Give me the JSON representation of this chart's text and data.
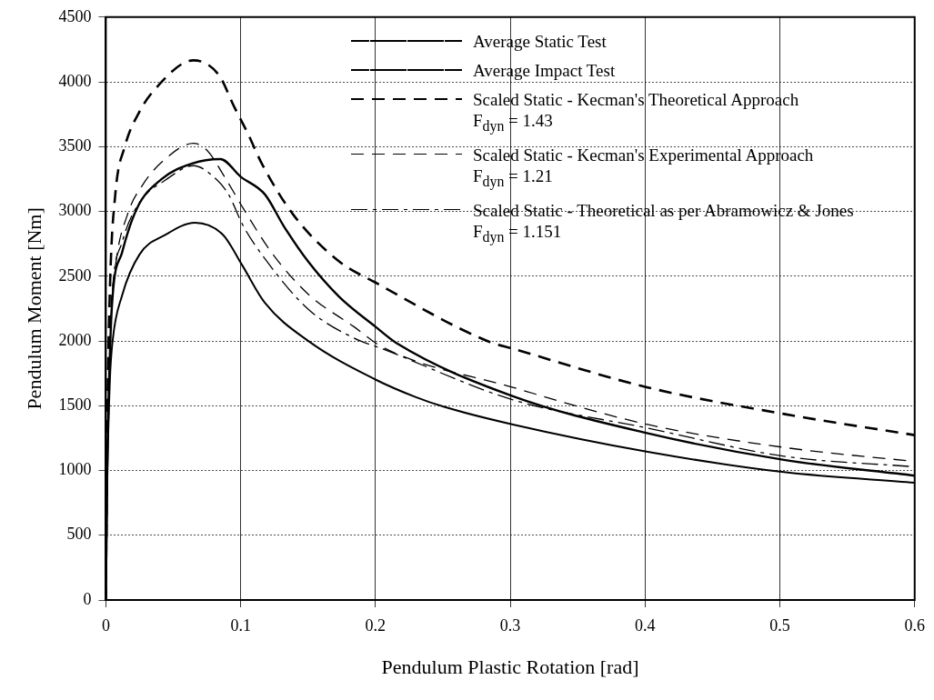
{
  "chart_data": {
    "type": "line",
    "xlabel": "Pendulum Plastic Rotation [rad]",
    "ylabel": "Pendulum Moment [Nm]",
    "xlim": [
      0,
      0.6
    ],
    "xticks": [
      0,
      0.1,
      0.2,
      0.3,
      0.4,
      0.5,
      0.6
    ],
    "ylim": [
      0,
      4500
    ],
    "yticks": [
      0,
      500,
      1000,
      1500,
      2000,
      2500,
      3000,
      3500,
      4000,
      4500
    ],
    "grid": true,
    "legend": "top right",
    "marker": "none",
    "series": [
      {
        "name": "Average Static Test",
        "color": "#000000",
        "line_style": "solid",
        "x": [
          0,
          0.001,
          0.003,
          0.005,
          0.012,
          0.025,
          0.044,
          0.066,
          0.087,
          0.101,
          0.118,
          0.15,
          0.2,
          0.23,
          0.251,
          0.302,
          0.402,
          0.503,
          0.6
        ],
        "values": [
          0,
          900,
          1700,
          2000,
          2350,
          2668,
          2818,
          2913,
          2818,
          2587,
          2294,
          2001,
          1702,
          1566,
          1491,
          1355,
          1144,
          987,
          905
        ]
      },
      {
        "name": "Average Impact Test",
        "color": "#000000",
        "line_style": "solid",
        "x": [
          0,
          0.001,
          0.003,
          0.005,
          0.012,
          0.023,
          0.041,
          0.064,
          0.085,
          0.1,
          0.118,
          0.132,
          0.15,
          0.173,
          0.2,
          0.216,
          0.302,
          0.402,
          0.503,
          0.6
        ],
        "values": [
          0,
          1000,
          1900,
          2342,
          2682,
          3022,
          3247,
          3370,
          3404,
          3268,
          3131,
          2886,
          2614,
          2342,
          2110,
          1981,
          1573,
          1287,
          1082,
          960
        ]
      },
      {
        "name": "Scaled Static - Kecman's Theoretical Approach\nF$_{dyn}$ = 1.43",
        "color": "#000000",
        "line_style": "dashed",
        "x": [
          0,
          0.001,
          0.003,
          0.007,
          0.014,
          0.025,
          0.037,
          0.065,
          0.084,
          0.095,
          0.105,
          0.116,
          0.139,
          0.173,
          0.2,
          0.284,
          0.302,
          0.402,
          0.503,
          0.6
        ],
        "values": [
          0,
          1300,
          2400,
          3131,
          3499,
          3771,
          3950,
          4166,
          4050,
          3812,
          3608,
          3363,
          2975,
          2614,
          2451,
          1995,
          1940,
          1641,
          1436,
          1273
        ]
      },
      {
        "name": "Scaled Static - Kecman's Experimental Approach\nF$_{dyn}$ = 1.21",
        "color": "#000000",
        "line_style": "dashed",
        "x": [
          0,
          0.001,
          0.003,
          0.007,
          0.016,
          0.027,
          0.044,
          0.065,
          0.075,
          0.088,
          0.102,
          0.123,
          0.15,
          0.184,
          0.205,
          0.302,
          0.402,
          0.503,
          0.6
        ],
        "values": [
          0,
          1100,
          2050,
          2566,
          2975,
          3200,
          3404,
          3526,
          3472,
          3268,
          3022,
          2682,
          2362,
          2110,
          1954,
          1641,
          1355,
          1178,
          1069
        ]
      },
      {
        "name": "Scaled Static - Theoretical as per Abramowicz & Jones\nF$_{dyn}$ = 1.151",
        "color": "#000000",
        "line_style": "dashdot",
        "x": [
          0,
          0.001,
          0.003,
          0.005,
          0.012,
          0.025,
          0.044,
          0.065,
          0.082,
          0.091,
          0.102,
          0.118,
          0.15,
          0.184,
          0.205,
          0.302,
          0.402,
          0.503,
          0.6
        ],
        "values": [
          0,
          1050,
          1950,
          2400,
          2760,
          3070,
          3240,
          3353,
          3247,
          3131,
          2886,
          2634,
          2246,
          2022,
          1940,
          1545,
          1327,
          1110,
          1028
        ]
      }
    ]
  }
}
